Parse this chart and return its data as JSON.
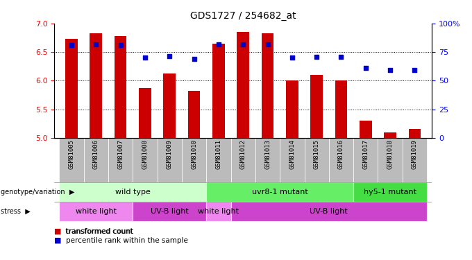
{
  "title": "GDS1727 / 254682_at",
  "samples": [
    "GSM81005",
    "GSM81006",
    "GSM81007",
    "GSM81008",
    "GSM81009",
    "GSM81010",
    "GSM81011",
    "GSM81012",
    "GSM81013",
    "GSM81014",
    "GSM81015",
    "GSM81016",
    "GSM81017",
    "GSM81018",
    "GSM81019"
  ],
  "bar_values": [
    6.73,
    6.83,
    6.78,
    5.87,
    6.13,
    5.82,
    6.65,
    6.85,
    6.83,
    6.0,
    6.1,
    6.0,
    5.3,
    5.1,
    5.15
  ],
  "dot_values": [
    6.62,
    6.63,
    6.62,
    6.4,
    6.43,
    6.38,
    6.63,
    6.63,
    6.63,
    6.4,
    6.42,
    6.42,
    6.22,
    6.19,
    6.19
  ],
  "ylim": [
    5.0,
    7.0
  ],
  "y2lim": [
    0,
    100
  ],
  "yticks": [
    5.0,
    5.5,
    6.0,
    6.5,
    7.0
  ],
  "y2ticks": [
    0,
    25,
    50,
    75,
    100
  ],
  "y2ticklabels": [
    "0",
    "25",
    "50",
    "75",
    "100%"
  ],
  "bar_color": "#cc0000",
  "dot_color": "#0000cc",
  "genotype_groups": [
    {
      "label": "wild type",
      "start": 0,
      "end": 6,
      "color": "#ccffcc"
    },
    {
      "label": "uvr8-1 mutant",
      "start": 6,
      "end": 12,
      "color": "#66ee66"
    },
    {
      "label": "hy5-1 mutant",
      "start": 12,
      "end": 15,
      "color": "#44dd44"
    }
  ],
  "stress_groups": [
    {
      "label": "white light",
      "start": 0,
      "end": 3,
      "color": "#ee88ee"
    },
    {
      "label": "UV-B light",
      "start": 3,
      "end": 6,
      "color": "#cc44cc"
    },
    {
      "label": "white light",
      "start": 6,
      "end": 7,
      "color": "#ee88ee"
    },
    {
      "label": "UV-B light",
      "start": 7,
      "end": 15,
      "color": "#cc44cc"
    }
  ],
  "legend_red_label": "transformed count",
  "legend_blue_label": "percentile rank within the sample",
  "tick_label_bg": "#bbbbbb",
  "gridline_yticks": [
    5.5,
    6.0,
    6.5
  ]
}
